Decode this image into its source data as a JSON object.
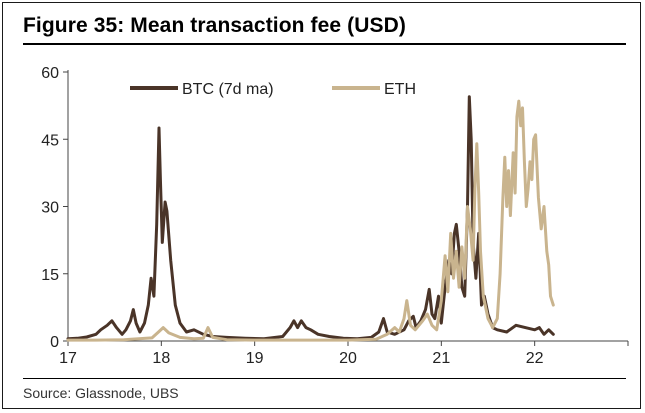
{
  "figure": {
    "title": "Figure 35: Mean transaction fee (USD)",
    "source": "Source: Glassnode, UBS"
  },
  "chart_data": {
    "type": "line",
    "title": "Figure 35: Mean transaction fee (USD)",
    "xlabel": "",
    "ylabel": "",
    "xlim": [
      17,
      23
    ],
    "ylim": [
      0,
      60
    ],
    "x_ticks": [
      17,
      18,
      19,
      20,
      21,
      22
    ],
    "y_ticks": [
      0,
      15,
      30,
      45,
      60
    ],
    "legend_position": "top",
    "grid": false,
    "series": [
      {
        "name": "BTC (7d ma)",
        "color": "#4a3428",
        "points": [
          [
            17.0,
            0.5
          ],
          [
            17.1,
            0.6
          ],
          [
            17.2,
            0.9
          ],
          [
            17.3,
            1.5
          ],
          [
            17.35,
            2.5
          ],
          [
            17.42,
            3.5
          ],
          [
            17.47,
            4.5
          ],
          [
            17.52,
            3.0
          ],
          [
            17.58,
            1.5
          ],
          [
            17.62,
            2.5
          ],
          [
            17.67,
            4.5
          ],
          [
            17.7,
            7.0
          ],
          [
            17.73,
            4.0
          ],
          [
            17.77,
            2.0
          ],
          [
            17.82,
            4.0
          ],
          [
            17.86,
            8.0
          ],
          [
            17.89,
            14.0
          ],
          [
            17.92,
            10.0
          ],
          [
            17.95,
            26.0
          ],
          [
            17.975,
            47.5
          ],
          [
            17.99,
            36.0
          ],
          [
            18.01,
            22.0
          ],
          [
            18.04,
            31.0
          ],
          [
            18.06,
            29.0
          ],
          [
            18.1,
            18.0
          ],
          [
            18.15,
            8.0
          ],
          [
            18.2,
            4.0
          ],
          [
            18.27,
            2.0
          ],
          [
            18.35,
            2.5
          ],
          [
            18.45,
            1.5
          ],
          [
            18.55,
            1.0
          ],
          [
            18.7,
            0.8
          ],
          [
            18.9,
            0.6
          ],
          [
            19.1,
            0.5
          ],
          [
            19.3,
            1.0
          ],
          [
            19.38,
            3.0
          ],
          [
            19.42,
            4.5
          ],
          [
            19.46,
            3.0
          ],
          [
            19.5,
            4.5
          ],
          [
            19.55,
            3.0
          ],
          [
            19.6,
            2.5
          ],
          [
            19.68,
            1.5
          ],
          [
            19.8,
            1.0
          ],
          [
            19.95,
            0.6
          ],
          [
            20.1,
            0.5
          ],
          [
            20.25,
            0.8
          ],
          [
            20.33,
            2.0
          ],
          [
            20.38,
            5.0
          ],
          [
            20.42,
            2.0
          ],
          [
            20.5,
            1.5
          ],
          [
            20.6,
            2.5
          ],
          [
            20.65,
            4.5
          ],
          [
            20.7,
            5.5
          ],
          [
            20.73,
            3.0
          ],
          [
            20.78,
            4.5
          ],
          [
            20.83,
            7.0
          ],
          [
            20.87,
            11.5
          ],
          [
            20.9,
            6.0
          ],
          [
            20.93,
            5.0
          ],
          [
            20.97,
            10.0
          ],
          [
            21.0,
            4.0
          ],
          [
            21.04,
            12.0
          ],
          [
            21.08,
            18.0
          ],
          [
            21.11,
            15.0
          ],
          [
            21.14,
            24.0
          ],
          [
            21.16,
            26.0
          ],
          [
            21.19,
            20.0
          ],
          [
            21.22,
            12.0
          ],
          [
            21.25,
            10.0
          ],
          [
            21.28,
            30.0
          ],
          [
            21.3,
            54.5
          ],
          [
            21.32,
            45.0
          ],
          [
            21.34,
            22.0
          ],
          [
            21.37,
            14.0
          ],
          [
            21.4,
            24.0
          ],
          [
            21.43,
            8.0
          ],
          [
            21.46,
            10.0
          ],
          [
            21.5,
            6.0
          ],
          [
            21.55,
            3.0
          ],
          [
            21.6,
            2.5
          ],
          [
            21.7,
            2.0
          ],
          [
            21.8,
            3.5
          ],
          [
            21.9,
            3.0
          ],
          [
            22.0,
            2.5
          ],
          [
            22.05,
            3.0
          ],
          [
            22.1,
            1.5
          ],
          [
            22.15,
            2.5
          ],
          [
            22.2,
            1.5
          ]
        ]
      },
      {
        "name": "ETH",
        "color": "#c9b48e",
        "points": [
          [
            17.0,
            0.2
          ],
          [
            17.3,
            0.2
          ],
          [
            17.6,
            0.3
          ],
          [
            17.9,
            0.7
          ],
          [
            17.97,
            2.0
          ],
          [
            18.02,
            3.0
          ],
          [
            18.08,
            1.8
          ],
          [
            18.2,
            0.8
          ],
          [
            18.35,
            0.5
          ],
          [
            18.45,
            0.6
          ],
          [
            18.5,
            3.0
          ],
          [
            18.55,
            0.8
          ],
          [
            18.7,
            0.3
          ],
          [
            19.0,
            0.2
          ],
          [
            19.5,
            0.2
          ],
          [
            20.0,
            0.2
          ],
          [
            20.3,
            0.4
          ],
          [
            20.42,
            1.5
          ],
          [
            20.5,
            3.0
          ],
          [
            20.55,
            2.0
          ],
          [
            20.6,
            5.0
          ],
          [
            20.63,
            9.0
          ],
          [
            20.67,
            3.5
          ],
          [
            20.72,
            2.5
          ],
          [
            20.8,
            4.5
          ],
          [
            20.85,
            6.0
          ],
          [
            20.9,
            3.5
          ],
          [
            20.95,
            2.5
          ],
          [
            21.0,
            9.0
          ],
          [
            21.04,
            19.0
          ],
          [
            21.07,
            11.0
          ],
          [
            21.1,
            24.0
          ],
          [
            21.13,
            14.0
          ],
          [
            21.16,
            20.0
          ],
          [
            21.19,
            12.0
          ],
          [
            21.22,
            21.0
          ],
          [
            21.25,
            14.0
          ],
          [
            21.28,
            30.0
          ],
          [
            21.31,
            25.0
          ],
          [
            21.34,
            18.0
          ],
          [
            21.36,
            34.0
          ],
          [
            21.38,
            44.0
          ],
          [
            21.4,
            33.0
          ],
          [
            21.42,
            20.0
          ],
          [
            21.45,
            10.0
          ],
          [
            21.5,
            5.0
          ],
          [
            21.55,
            3.0
          ],
          [
            21.6,
            5.0
          ],
          [
            21.63,
            15.0
          ],
          [
            21.66,
            32.0
          ],
          [
            21.68,
            41.0
          ],
          [
            21.7,
            30.0
          ],
          [
            21.72,
            38.0
          ],
          [
            21.74,
            28.0
          ],
          [
            21.77,
            42.0
          ],
          [
            21.79,
            33.0
          ],
          [
            21.81,
            50.0
          ],
          [
            21.83,
            53.5
          ],
          [
            21.85,
            48.0
          ],
          [
            21.87,
            52.0
          ],
          [
            21.89,
            40.0
          ],
          [
            21.91,
            30.0
          ],
          [
            21.93,
            34.0
          ],
          [
            21.95,
            40.0
          ],
          [
            21.97,
            36.0
          ],
          [
            21.99,
            45.0
          ],
          [
            22.01,
            46.0
          ],
          [
            22.04,
            32.0
          ],
          [
            22.07,
            25.0
          ],
          [
            22.1,
            30.0
          ],
          [
            22.13,
            20.0
          ],
          [
            22.15,
            17.0
          ],
          [
            22.17,
            10.0
          ],
          [
            22.2,
            8.0
          ]
        ]
      }
    ]
  }
}
